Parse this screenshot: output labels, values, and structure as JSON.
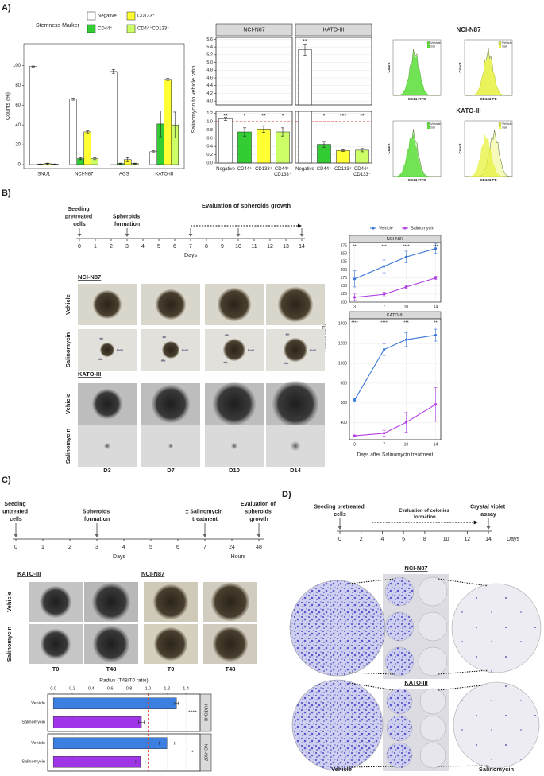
{
  "panel_labels": [
    "A)",
    "B)",
    "C)",
    "D)"
  ],
  "chart_data": [
    {
      "type": "bar",
      "ylabel": "Counts (%)",
      "legend_title": "Stemness Marker",
      "categories": [
        "SNU1",
        "NCI-N87",
        "AGS",
        "KATO-III"
      ],
      "series": [
        {
          "name": "Negative",
          "color": "#ffffff",
          "values": [
            99,
            66,
            94,
            13
          ],
          "errors": [
            0.5,
            1,
            2,
            1
          ]
        },
        {
          "name": "CD44⁺",
          "color": "#33cc33",
          "values": [
            0.5,
            6,
            1,
            41
          ],
          "errors": [
            0.2,
            1,
            0.5,
            13
          ]
        },
        {
          "name": "CD133⁺",
          "color": "#ffff33",
          "values": [
            1,
            33,
            5,
            86
          ],
          "errors": [
            0.5,
            1,
            2,
            1
          ]
        },
        {
          "name": "CD44⁺CD133⁺",
          "color": "#ccff66",
          "values": [
            0.5,
            6,
            1,
            40
          ],
          "errors": [
            0.2,
            1,
            0.5,
            13
          ]
        }
      ],
      "ylim": [
        -4,
        122
      ],
      "yticks": [
        0,
        20,
        40,
        60,
        80,
        100
      ]
    },
    {
      "type": "bar",
      "ylabel": "Salinomycin to vehicle ratio",
      "categories": [
        "Negative",
        "CD44⁺",
        "CD133⁺",
        "CD44⁺ CD133⁺"
      ],
      "colors": [
        "#ffffff",
        "#33cc33",
        "#ffff33",
        "#ccff66"
      ],
      "ylim": [
        0,
        1.25
      ],
      "ylim_upper": [
        3.9,
        5.65
      ],
      "yticks": [
        {
          "value": 0,
          "label": "0.0"
        },
        0.2,
        0.4,
        0.6,
        0.8,
        {
          "value": 1,
          "label": "1.0"
        },
        1.2,
        {
          "value": 4,
          "label": "4.0"
        },
        4.2,
        4.4,
        4.6,
        4.8,
        {
          "value": 5,
          "label": "5.0"
        },
        5.2,
        5.4,
        5.6
      ],
      "reference_line": 1,
      "grid": true,
      "facets": [
        {
          "title": "NCI-N87",
          "values": [
            1.07,
            0.75,
            0.82,
            0.75
          ],
          "errors": [
            0.04,
            0.1,
            0.08,
            0.1
          ],
          "significance": [
            "**",
            "*",
            "**",
            "*"
          ]
        },
        {
          "title": "KATO-III",
          "values": [
            5.33,
            0.45,
            0.3,
            0.31
          ],
          "errors": [
            0.15,
            0.07,
            0.02,
            0.04
          ],
          "significance": [
            "**",
            "*",
            "***",
            "**"
          ]
        }
      ]
    },
    {
      "type": "line",
      "xlabel": "Days after Salinomycin treatment",
      "ylabel": "Radius (µm)",
      "x": [
        3,
        7,
        10,
        14
      ],
      "xlim": [
        2.3,
        14.7
      ],
      "xticks": [
        3,
        7,
        10,
        14
      ],
      "grid": true,
      "series": [
        {
          "name": "Vehicle",
          "color": "#3c78d8"
        },
        {
          "name": "Salinomycin",
          "color": "#b23fe6"
        }
      ],
      "facets": [
        {
          "title": "NCI-N87",
          "ylim": [
            100,
            285
          ],
          "yticks": [
            100,
            125,
            150,
            175,
            200,
            225,
            250,
            275
          ],
          "lines": [
            {
              "values": [
                172,
                211,
                240,
                266
              ],
              "errors": [
                25,
                20,
                18,
                15
              ]
            },
            {
              "values": [
                115,
                124,
                147,
                175
              ],
              "errors": [
                10,
                7,
                5,
                5
              ]
            }
          ],
          "significance": [
            "**",
            "***",
            "****",
            "***"
          ]
        },
        {
          "title": "KATO-III",
          "ylim": [
            230,
            1450
          ],
          "yticks": [
            400,
            600,
            800,
            1000,
            1200,
            1400
          ],
          "lines": [
            {
              "values": [
                630,
                1140,
                1240,
                1285
              ],
              "errors": [
                15,
                60,
                70,
                60
              ]
            },
            {
              "values": [
                270,
                295,
                405,
                585
              ],
              "errors": [
                5,
                30,
                100,
                170
              ]
            }
          ],
          "significance": [
            "****",
            "****",
            "***",
            "**"
          ]
        }
      ]
    },
    {
      "type": "barh",
      "xlabel": "Radius (T48/T0 ratio)",
      "categories": [
        "Vehicle",
        "Salinomycin"
      ],
      "colors": [
        "#3d7fe0",
        "#a035e8"
      ],
      "xlim": [
        -0.06,
        1.55
      ],
      "xticks": [
        {
          "value": 0,
          "label": "0.0"
        },
        0.2,
        0.4,
        0.6,
        0.8,
        {
          "value": 1,
          "label": "1.0"
        },
        1.2,
        1.4
      ],
      "reference_line": 1,
      "facets": [
        {
          "title": "KATO-III",
          "values": [
            1.3,
            0.93
          ],
          "errors": [
            0.02,
            0.03
          ],
          "significance": "****"
        },
        {
          "title": "NCI-N87",
          "values": [
            1.2,
            0.92
          ],
          "errors": [
            0.08,
            0.05
          ],
          "significance": "*"
        }
      ]
    }
  ],
  "flow_cytometry": {
    "titles": [
      "NCI-N87",
      "KATO-III"
    ],
    "x_labels": [
      "CD44 FITC",
      "CD133 PE"
    ],
    "y_label": "Count",
    "legend": [
      "Vehicle",
      "Sal"
    ]
  },
  "timeline_b": {
    "ticks": [
      0,
      1,
      2,
      3,
      4,
      5,
      6,
      7,
      8,
      9,
      10,
      11,
      12,
      13,
      14
    ],
    "axis_label": "Days",
    "markers": [
      0,
      3,
      7,
      10,
      14
    ],
    "events": [
      {
        "label": "Seeding pretreated cells",
        "at": 0
      },
      {
        "label": "Spheroids formation",
        "at": 3
      }
    ],
    "range_event": {
      "label": "Evaluation of spheroids growth",
      "from": 7,
      "to": 14
    }
  },
  "spheroids_b": {
    "groups": [
      "NCI-N87",
      "KATO-III"
    ],
    "conditions": [
      "Vehicle",
      "Salinomycin"
    ],
    "timepoints": [
      "D3",
      "D7",
      "D10",
      "D14"
    ]
  },
  "timeline_c": {
    "ticks": [
      0,
      1,
      2,
      3,
      4,
      5,
      6,
      7,
      24,
      48
    ],
    "units": [
      "Days",
      "Hours"
    ],
    "markers": [
      0,
      3,
      7,
      48
    ],
    "events": [
      {
        "label": "Seeding untreated cells",
        "at": 0
      },
      {
        "label": "Spheroids formation",
        "at": 3
      },
      {
        "label": "± Salinomycin treatment",
        "at": 7
      },
      {
        "label": "Evaluation of spheroids growth",
        "at": 48
      }
    ]
  },
  "spheroids_c": {
    "groups": [
      "KATO-III",
      "NCI-N87"
    ],
    "conditions": [
      "Vehicle",
      "Salinomycin"
    ],
    "timepoints": [
      "T0",
      "T48"
    ]
  },
  "timeline_d": {
    "ticks": [
      0,
      2,
      4,
      6,
      8,
      10,
      12,
      14
    ],
    "axis_label": "Days",
    "markers": [
      0,
      14
    ],
    "events": [
      {
        "label": "Seeding pretreated cells",
        "at": 0
      },
      {
        "label": "Crystal violet assay",
        "at": 14
      }
    ],
    "range_event": {
      "label": "Evaluation of colonies formation",
      "from": 3,
      "to": 13
    }
  },
  "colonies_d": {
    "groups": [
      "NCI-N87",
      "KATO-III"
    ],
    "conditions": [
      "Vehicle",
      "Salinomycin"
    ]
  }
}
